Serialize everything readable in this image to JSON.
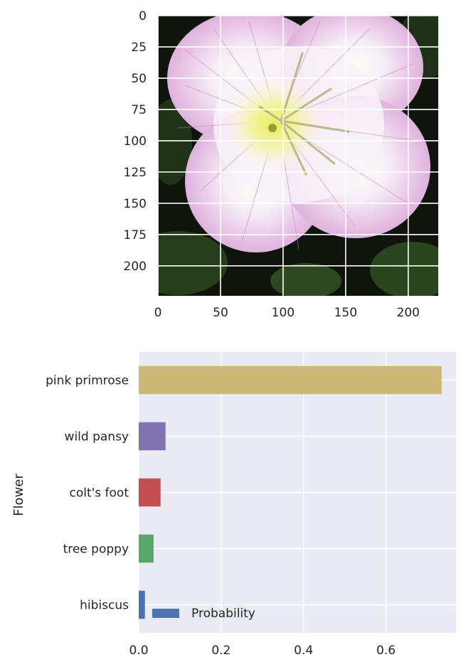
{
  "chart_data": [
    {
      "type": "image",
      "description": "",
      "xlim": [
        0,
        224
      ],
      "ylim": [
        224,
        0
      ],
      "xticks": [
        "0",
        "50",
        "100",
        "150",
        "200"
      ],
      "yticks": [
        "0",
        "25",
        "50",
        "75",
        "100",
        "125",
        "150",
        "175",
        "200"
      ],
      "grid": true
    },
    {
      "type": "bar",
      "orientation": "horizontal",
      "categories": [
        "pink primrose",
        "wild pansy",
        "colt's foot",
        "tree poppy",
        "hibiscus"
      ],
      "values": [
        0.735,
        0.065,
        0.053,
        0.036,
        0.015
      ],
      "colors": [
        "#ccb974",
        "#8172b2",
        "#c44e52",
        "#55a868",
        "#4c72b0"
      ],
      "xlabel": "",
      "ylabel": "Flower",
      "xlim": [
        0,
        0.77
      ],
      "xticks": [
        "0.0",
        "0.2",
        "0.4",
        "0.6"
      ],
      "legend": {
        "label": "Probability",
        "color": "#4c72b0",
        "placement": "lower-left"
      },
      "grid": true,
      "background": "#eaeaf2"
    }
  ]
}
